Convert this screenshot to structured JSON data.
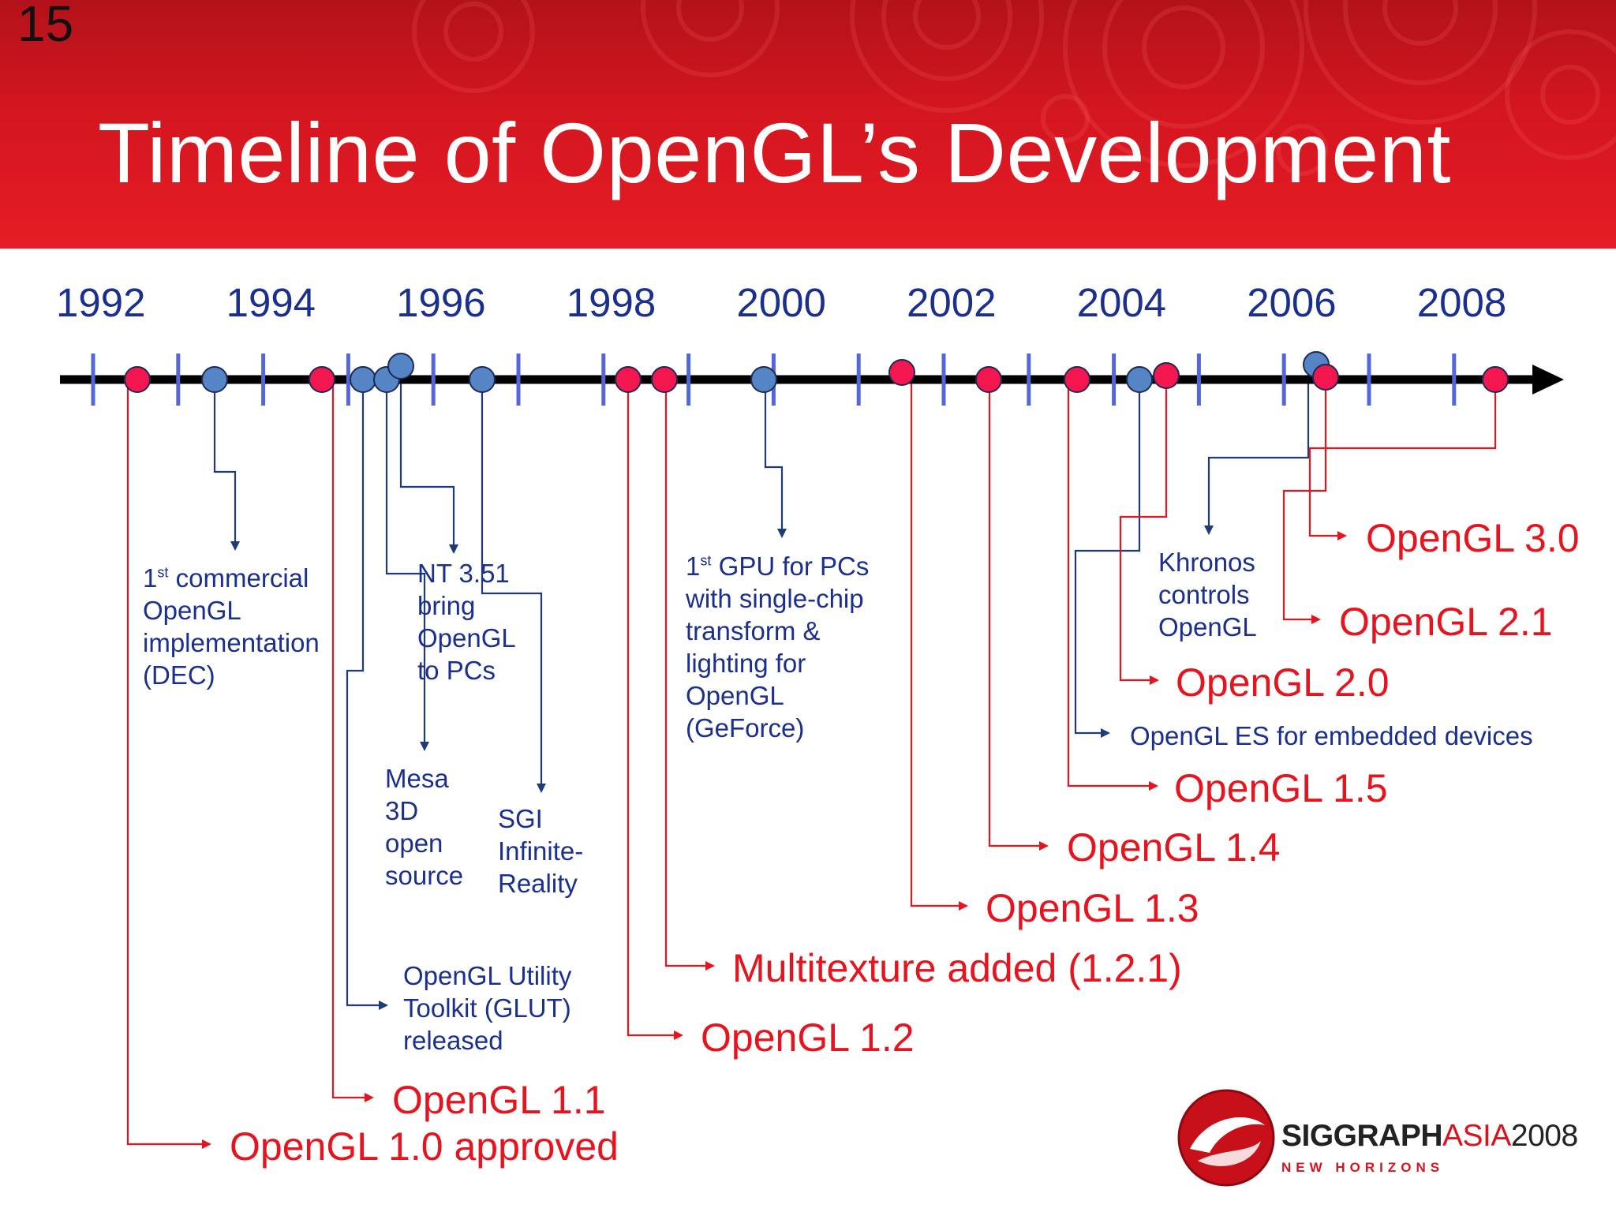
{
  "slide": {
    "number": "15",
    "title": "Timeline of OpenGL’s Development"
  },
  "timeline": {
    "years": [
      "1992",
      "1994",
      "1996",
      "1998",
      "2000",
      "2002",
      "2004",
      "2006",
      "2008"
    ],
    "events": [
      {
        "id": "gl10",
        "date": 1992.5,
        "kind": "opengl-release",
        "text": "OpenGL 1.0 approved"
      },
      {
        "id": "dec",
        "date": 1993.4,
        "kind": "industry",
        "sup": "st",
        "lines": [
          "1",
          "commercial",
          "OpenGL",
          "implementation",
          "(DEC)"
        ]
      },
      {
        "id": "gl11",
        "date": 1995.0,
        "kind": "opengl-release",
        "text": "OpenGL 1.1"
      },
      {
        "id": "glut",
        "date": 1995.4,
        "kind": "industry",
        "lines": [
          "OpenGL Utility",
          "Toolkit (GLUT)",
          "released"
        ]
      },
      {
        "id": "mesa",
        "date": 1995.7,
        "kind": "industry",
        "lines": [
          "Mesa",
          "3D",
          "open",
          "source"
        ]
      },
      {
        "id": "nt351",
        "date": 1995.85,
        "kind": "industry",
        "lines": [
          "NT 3.51",
          "bring",
          "OpenGL",
          "to PCs"
        ]
      },
      {
        "id": "sgi",
        "date": 1996.5,
        "kind": "industry",
        "lines": [
          "SGI",
          "Infinite-",
          "Reality"
        ]
      },
      {
        "id": "gl12",
        "date": 1998.25,
        "kind": "opengl-release",
        "text": "OpenGL 1.2"
      },
      {
        "id": "gl121",
        "date": 1998.7,
        "kind": "opengl-release",
        "text": "Multitexture added (1.2.1)"
      },
      {
        "id": "geforce",
        "date": 1999.9,
        "kind": "industry",
        "sup": "st",
        "lines": [
          "1",
          "GPU for PCs",
          "with single-chip",
          "transform &",
          "lighting for",
          "OpenGL",
          "(GeForce)"
        ]
      },
      {
        "id": "gl13",
        "date": 2001.7,
        "kind": "opengl-release",
        "text": "OpenGL 1.3"
      },
      {
        "id": "gl14",
        "date": 2002.5,
        "kind": "opengl-release",
        "text": "OpenGL 1.4"
      },
      {
        "id": "gl15",
        "date": 2003.55,
        "kind": "opengl-release",
        "text": "OpenGL 1.5"
      },
      {
        "id": "es",
        "date": 2004.2,
        "kind": "industry",
        "lines": [
          "OpenGL ES for embedded devices"
        ]
      },
      {
        "id": "gl20",
        "date": 2004.6,
        "kind": "opengl-release",
        "text": "OpenGL 2.0"
      },
      {
        "id": "khronos",
        "date": 2006.35,
        "kind": "industry",
        "lines": [
          "Khronos",
          "controls",
          "OpenGL"
        ]
      },
      {
        "id": "gl21",
        "date": 2006.45,
        "kind": "opengl-release",
        "text": "OpenGL 2.1"
      },
      {
        "id": "gl30",
        "date": 2008.45,
        "kind": "opengl-release",
        "text": "OpenGL 3.0"
      }
    ]
  },
  "logo": {
    "brand_main": "SIGGRAPH",
    "brand_accent": "ASIA",
    "brand_year": "2008",
    "tagline": "NEW HORIZONS"
  },
  "colors": {
    "header_red": "#d4161f",
    "release_red": "#e5141e",
    "industry_blue": "#1a2f8e",
    "dot_blue": "#5585c5",
    "dot_pink": "#f4164f",
    "tick_blue": "#5566d8"
  }
}
